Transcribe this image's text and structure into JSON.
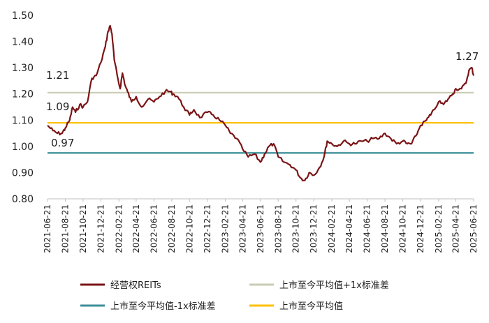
{
  "chart_data": {
    "type": "line",
    "title": "",
    "xlabel": "",
    "ylabel": "",
    "ylim": [
      0.8,
      1.5
    ],
    "yticks": [
      "0.80",
      "0.90",
      "1.00",
      "1.10",
      "1.20",
      "1.30",
      "1.40",
      "1.50"
    ],
    "xticks": [
      "2021-06-21",
      "2021-08-21",
      "2021-10-21",
      "2021-12-21",
      "2022-02-21",
      "2022-04-21",
      "2022-06-21",
      "2022-08-21",
      "2022-10-21",
      "2022-12-21",
      "2023-02-21",
      "2023-04-21",
      "2023-06-21",
      "2023-08-21",
      "2023-10-21",
      "2023-12-21",
      "2024-02-21",
      "2024-04-21",
      "2024-06-21",
      "2024-08-21",
      "2024-10-21",
      "2024-12-21",
      "2025-02-21",
      "2025-04-21",
      "2025-06-21"
    ],
    "grid": false,
    "legend_position": "bottom",
    "series": [
      {
        "name": "经营权REITs",
        "color": "#7b1416",
        "x": [
          "2021-06-21",
          "2021-07-10",
          "2021-07-25",
          "2021-08-10",
          "2021-08-21",
          "2021-09-05",
          "2021-09-15",
          "2021-09-25",
          "2021-10-10",
          "2021-10-21",
          "2021-11-05",
          "2021-11-20",
          "2021-12-05",
          "2021-12-21",
          "2022-01-05",
          "2022-01-15",
          "2022-01-22",
          "2022-01-28",
          "2022-02-05",
          "2022-02-15",
          "2022-02-25",
          "2022-03-05",
          "2022-03-15",
          "2022-03-22",
          "2022-04-05",
          "2022-04-21",
          "2022-05-10",
          "2022-06-01",
          "2022-06-21",
          "2022-07-10",
          "2022-07-30",
          "2022-08-15",
          "2022-08-25",
          "2022-09-10",
          "2022-10-01",
          "2022-10-21",
          "2022-11-05",
          "2022-11-25",
          "2022-12-21",
          "2023-01-10",
          "2023-02-01",
          "2023-02-21",
          "2023-03-10",
          "2023-04-01",
          "2023-04-21",
          "2023-05-10",
          "2023-06-01",
          "2023-06-21",
          "2023-07-05",
          "2023-07-20",
          "2023-08-05",
          "2023-08-21",
          "2023-09-10",
          "2023-09-30",
          "2023-10-21",
          "2023-11-05",
          "2023-11-20",
          "2023-12-05",
          "2023-12-21",
          "2024-01-10",
          "2024-01-25",
          "2024-02-05",
          "2024-02-21",
          "2024-03-10",
          "2024-04-01",
          "2024-04-21",
          "2024-05-10",
          "2024-06-01",
          "2024-06-21",
          "2024-07-10",
          "2024-08-01",
          "2024-08-21",
          "2024-09-10",
          "2024-09-30",
          "2024-10-21",
          "2024-11-05",
          "2024-11-20",
          "2024-12-05",
          "2024-12-21",
          "2025-01-10",
          "2025-01-25",
          "2025-02-21",
          "2025-03-10",
          "2025-03-25",
          "2025-04-10",
          "2025-04-21",
          "2025-05-10",
          "2025-05-25",
          "2025-06-05",
          "2025-06-15",
          "2025-06-21"
        ],
        "values": [
          1.08,
          1.06,
          1.05,
          1.05,
          1.07,
          1.1,
          1.15,
          1.13,
          1.16,
          1.15,
          1.17,
          1.26,
          1.27,
          1.32,
          1.38,
          1.44,
          1.46,
          1.43,
          1.33,
          1.27,
          1.22,
          1.28,
          1.23,
          1.21,
          1.17,
          1.19,
          1.15,
          1.18,
          1.17,
          1.19,
          1.21,
          1.21,
          1.2,
          1.19,
          1.15,
          1.12,
          1.14,
          1.11,
          1.13,
          1.12,
          1.1,
          1.08,
          1.05,
          1.03,
          0.99,
          0.96,
          0.97,
          0.94,
          0.97,
          1.0,
          1.01,
          0.96,
          0.94,
          0.93,
          0.91,
          0.88,
          0.87,
          0.9,
          0.89,
          0.92,
          0.96,
          1.02,
          1.01,
          1.0,
          1.02,
          1.01,
          1.01,
          1.02,
          1.02,
          1.03,
          1.03,
          1.05,
          1.03,
          1.01,
          1.02,
          1.01,
          1.01,
          1.04,
          1.08,
          1.1,
          1.12,
          1.17,
          1.16,
          1.18,
          1.2,
          1.22,
          1.22,
          1.24,
          1.29,
          1.3,
          1.27
        ]
      },
      {
        "name": "上市至今平均值+1x标准差",
        "color": "#c9cbb3",
        "values": [
          1.205,
          1.205
        ]
      },
      {
        "name": "上市至今平均值-1x标准差",
        "color": "#3c8e98",
        "values": [
          0.975,
          0.975
        ]
      },
      {
        "name": "上市至今平均值",
        "color": "#ffc000",
        "values": [
          1.09,
          1.09
        ]
      }
    ],
    "annotations": [
      {
        "text": "1.21",
        "y": 1.21
      },
      {
        "text": "1.09",
        "y": 1.09
      },
      {
        "text": "0.97",
        "y": 0.97
      },
      {
        "text": "1.27",
        "y": 1.27
      }
    ]
  }
}
